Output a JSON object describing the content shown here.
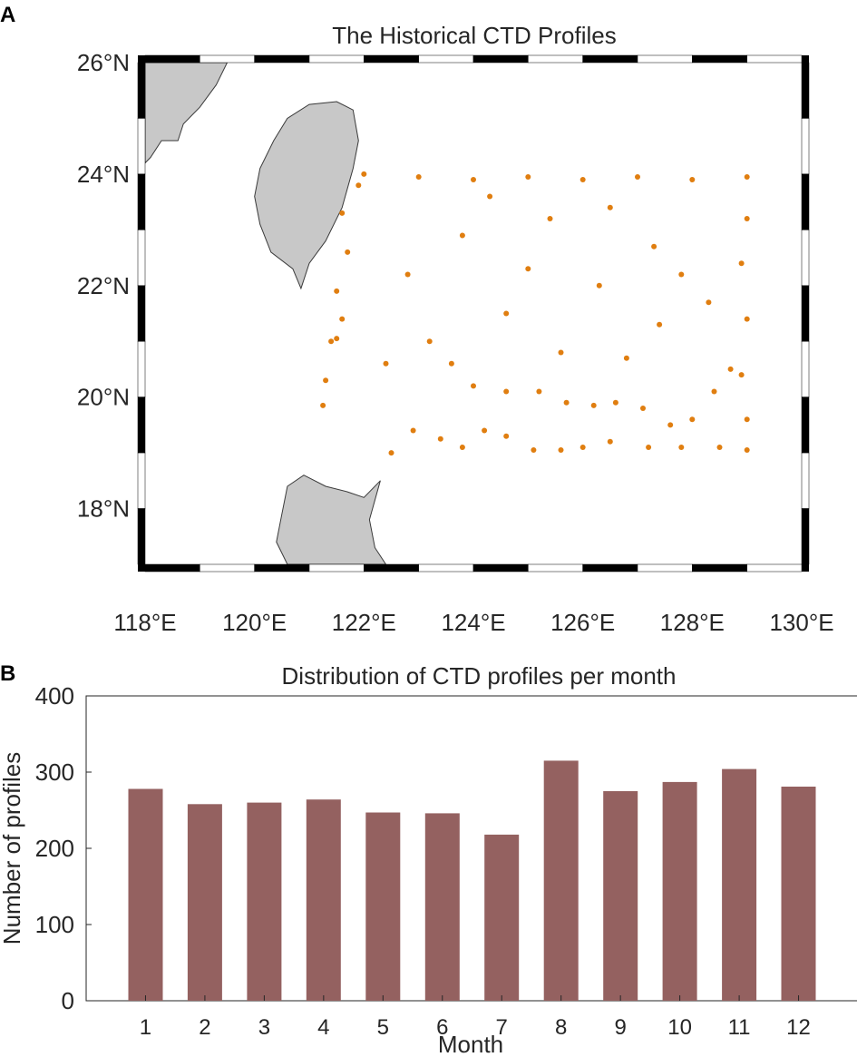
{
  "panels": {
    "a": {
      "letter": "A"
    },
    "b": {
      "letter": "B"
    }
  },
  "colors": {
    "land": "#c8c8c8",
    "land_edge": "#3a3a3a",
    "points": "#e07e10",
    "bars": "#946160",
    "axis": "#262626"
  },
  "icons": {
    "map_frame": "black-white-map-frame"
  },
  "chart_data": [
    {
      "type": "scatter",
      "title": "The Historical CTD Profiles",
      "xlabel": "",
      "ylabel": "",
      "xlim": [
        118,
        130
      ],
      "ylim": [
        17,
        26
      ],
      "x_ticks": [
        118,
        120,
        122,
        124,
        126,
        128,
        130
      ],
      "x_tick_labels": [
        "118°E",
        "120°E",
        "122°E",
        "124°E",
        "126°E",
        "128°E",
        "130°E"
      ],
      "y_ticks": [
        18,
        20,
        22,
        24,
        26
      ],
      "y_tick_labels": [
        "18°N",
        "20°N",
        "22°N",
        "24°N",
        "26°N"
      ],
      "grid": false,
      "coverage": {
        "lon": [
          121.2,
          129
        ],
        "lat": [
          19,
          24
        ]
      },
      "land": [
        {
          "name": "Taiwan",
          "outline": [
            [
              120.6,
              25.0
            ],
            [
              121.0,
              25.25
            ],
            [
              121.5,
              25.3
            ],
            [
              121.8,
              25.15
            ],
            [
              121.9,
              24.6
            ],
            [
              121.8,
              24.1
            ],
            [
              121.6,
              23.4
            ],
            [
              121.3,
              22.8
            ],
            [
              121.0,
              22.4
            ],
            [
              120.85,
              21.95
            ],
            [
              120.7,
              22.3
            ],
            [
              120.3,
              22.6
            ],
            [
              120.1,
              23.1
            ],
            [
              120.0,
              23.6
            ],
            [
              120.1,
              24.1
            ],
            [
              120.35,
              24.6
            ],
            [
              120.6,
              25.0
            ]
          ]
        },
        {
          "name": "China coast",
          "outline": [
            [
              118,
              26
            ],
            [
              119.5,
              26
            ],
            [
              119.3,
              25.6
            ],
            [
              119.0,
              25.2
            ],
            [
              118.7,
              24.9
            ],
            [
              118.6,
              24.6
            ],
            [
              118.3,
              24.6
            ],
            [
              118.1,
              24.3
            ],
            [
              118,
              24.2
            ]
          ]
        },
        {
          "name": "Luzon",
          "outline": [
            [
              120.6,
              17
            ],
            [
              120.4,
              17.4
            ],
            [
              120.5,
              17.9
            ],
            [
              120.6,
              18.4
            ],
            [
              120.9,
              18.6
            ],
            [
              121.3,
              18.4
            ],
            [
              121.7,
              18.3
            ],
            [
              122.0,
              18.2
            ],
            [
              122.3,
              18.5
            ],
            [
              122.1,
              17.8
            ],
            [
              122.2,
              17.3
            ],
            [
              122.4,
              17
            ]
          ]
        }
      ],
      "series": [
        {
          "name": "",
          "points": [
            [
              121.25,
              19.85
            ],
            [
              121.3,
              20.3
            ],
            [
              121.4,
              21.0
            ],
            [
              121.5,
              21.05
            ],
            [
              121.6,
              21.4
            ],
            [
              121.5,
              21.9
            ],
            [
              121.7,
              22.6
            ],
            [
              121.6,
              23.3
            ],
            [
              121.9,
              23.8
            ],
            [
              122.5,
              19.0
            ],
            [
              122.9,
              19.4
            ],
            [
              123.4,
              19.25
            ],
            [
              123.8,
              19.1
            ],
            [
              124.2,
              19.4
            ],
            [
              124.6,
              19.3
            ],
            [
              125.1,
              19.05
            ],
            [
              125.6,
              19.05
            ],
            [
              126.0,
              19.1
            ],
            [
              126.5,
              19.2
            ],
            [
              127.2,
              19.1
            ],
            [
              127.8,
              19.1
            ],
            [
              128.5,
              19.1
            ],
            [
              129.0,
              19.05
            ],
            [
              129.0,
              19.6
            ],
            [
              128.9,
              20.4
            ],
            [
              129.0,
              21.4
            ],
            [
              128.9,
              22.4
            ],
            [
              129.0,
              23.2
            ],
            [
              129.0,
              23.95
            ],
            [
              128.0,
              23.9
            ],
            [
              127.0,
              23.95
            ],
            [
              126.0,
              23.9
            ],
            [
              125.0,
              23.95
            ],
            [
              124.0,
              23.9
            ],
            [
              123.0,
              23.95
            ],
            [
              122.0,
              24.0
            ],
            [
              124.0,
              20.2
            ],
            [
              124.6,
              20.1
            ],
            [
              125.2,
              20.1
            ],
            [
              125.7,
              19.9
            ],
            [
              126.2,
              19.85
            ],
            [
              126.6,
              19.9
            ],
            [
              127.1,
              19.8
            ],
            [
              127.6,
              19.5
            ],
            [
              128.0,
              19.6
            ],
            [
              128.4,
              20.1
            ],
            [
              128.7,
              20.5
            ],
            [
              126.3,
              22.0
            ],
            [
              127.3,
              22.7
            ],
            [
              126.5,
              23.4
            ],
            [
              127.8,
              22.2
            ],
            [
              125.6,
              20.8
            ],
            [
              124.6,
              21.5
            ],
            [
              123.2,
              21.0
            ],
            [
              122.8,
              22.2
            ],
            [
              123.8,
              22.9
            ],
            [
              125.0,
              22.3
            ],
            [
              122.4,
              20.6
            ],
            [
              123.6,
              20.6
            ],
            [
              127.4,
              21.3
            ],
            [
              128.3,
              21.7
            ],
            [
              126.8,
              20.7
            ],
            [
              125.4,
              23.2
            ],
            [
              124.3,
              23.6
            ]
          ]
        }
      ]
    },
    {
      "type": "bar",
      "title": "Distribution of CTD profiles per month",
      "xlabel": "Month",
      "ylabel": "Number of profiles",
      "categories": [
        "1",
        "2",
        "3",
        "4",
        "5",
        "6",
        "7",
        "8",
        "9",
        "10",
        "11",
        "12"
      ],
      "values": [
        278,
        258,
        260,
        264,
        247,
        246,
        218,
        315,
        275,
        287,
        304,
        281
      ],
      "ylim": [
        0,
        400
      ],
      "y_ticks": [
        0,
        100,
        200,
        300,
        400
      ],
      "y_tick_labels": [
        "0",
        "100",
        "200",
        "300",
        "400"
      ],
      "grid": false
    }
  ]
}
